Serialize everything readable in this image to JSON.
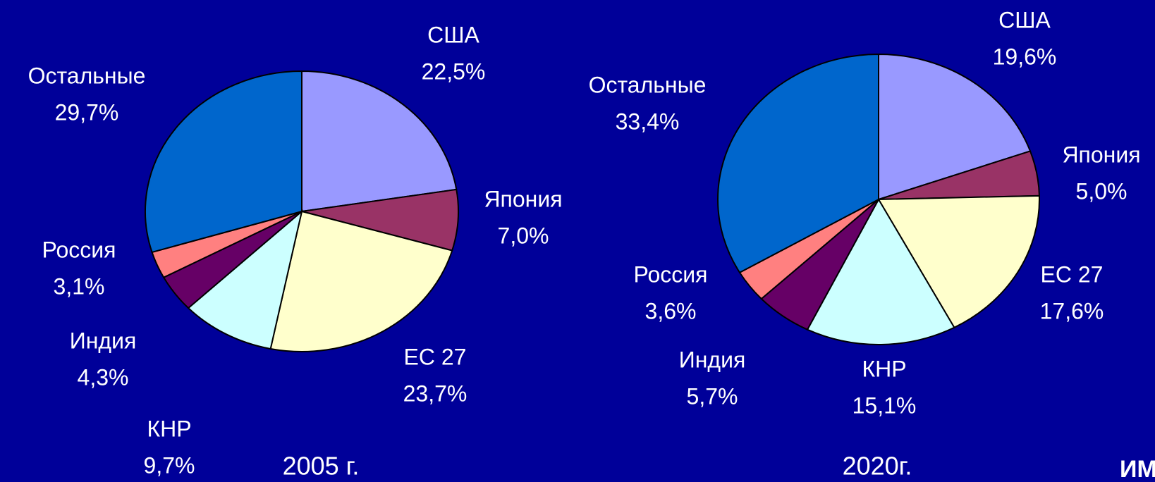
{
  "chart_data": [
    {
      "type": "pie",
      "title": "2005 г.",
      "categories": [
        "США",
        "Япония",
        "ЕС 27",
        "КНР",
        "Индия",
        "Россия",
        "Остальные"
      ],
      "values": [
        22.5,
        7.0,
        23.7,
        9.7,
        4.3,
        3.1,
        29.7
      ],
      "value_labels": [
        "22,5%",
        "7,0%",
        "23,7%",
        "9,7%",
        "4,3%",
        "3,1%",
        "29,7%"
      ],
      "colors": [
        "#9999ff",
        "#993366",
        "#ffffcc",
        "#ccffff",
        "#660066",
        "#ff8080",
        "#0066cc"
      ]
    },
    {
      "type": "pie",
      "title": "2020г.",
      "categories": [
        "США",
        "Япония",
        "ЕС 27",
        "КНР",
        "Индия",
        "Россия",
        "Остальные"
      ],
      "values": [
        19.6,
        5.0,
        17.6,
        15.1,
        5.7,
        3.6,
        33.4
      ],
      "value_labels": [
        "19,6%",
        "5,0%",
        "17,6%",
        "15,1%",
        "5,7%",
        "3,6%",
        "33,4%"
      ],
      "colors": [
        "#9999ff",
        "#993366",
        "#ffffcc",
        "#ccffff",
        "#660066",
        "#ff8080",
        "#0066cc"
      ]
    }
  ],
  "footer": {
    "logo": "ИМЭ"
  }
}
